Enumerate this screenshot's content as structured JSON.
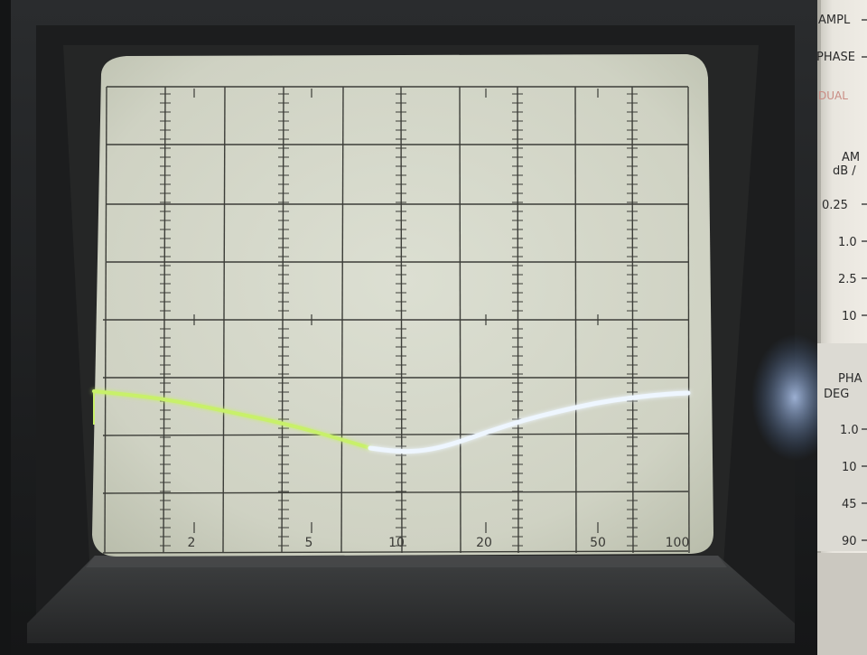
{
  "scene": {
    "description_free": true
  },
  "screen": {
    "x_axis_labels": [
      "2",
      "5",
      "10",
      "20",
      "50",
      "100"
    ],
    "trace_color_left": "#c8f06a",
    "trace_color_right": "#eef6ff",
    "phosphor_color": "#d9ddcf",
    "graticule_color": "#3c3d38"
  },
  "panel": {
    "top_labels": [
      "AMPL",
      "PHASE",
      "DUAL"
    ],
    "ampl_header": "AM",
    "ampl_subheader": "dB /",
    "ampl_scale": [
      "0.25",
      "1.0",
      "2.5",
      "10"
    ],
    "phase_header": "PHA",
    "phase_subheader": "DEG",
    "phase_scale": [
      "1.0",
      "10",
      "45",
      "90"
    ],
    "background": "#e6e3dc",
    "accent": "#c98b83"
  }
}
